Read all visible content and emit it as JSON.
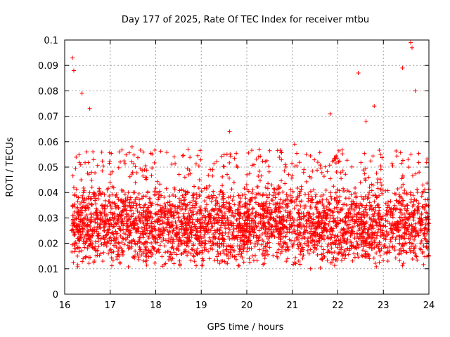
{
  "chart_data": {
    "type": "scatter",
    "title": "Day 177 of 2025, Rate Of TEC Index for receiver mtbu",
    "xlabel": "GPS time / hours",
    "ylabel": "ROTI / TECUs",
    "xlim": [
      16,
      24
    ],
    "ylim": [
      0,
      0.1
    ],
    "x_ticks": [
      "16",
      "17",
      "18",
      "19",
      "20",
      "21",
      "22",
      "23",
      "24"
    ],
    "y_ticks": [
      "0",
      "0.01",
      "0.02",
      "0.03",
      "0.04",
      "0.05",
      "0.06",
      "0.07",
      "0.08",
      "0.09",
      "0.1"
    ],
    "grid": true,
    "marker": "plus",
    "color": "#ff0000",
    "x_range_of_points": [
      16.15,
      24.0
    ],
    "typical_y_band": [
      0.01,
      0.045
    ],
    "series": [
      {
        "x": [
          16.15,
          16.18,
          16.2,
          16.22,
          16.25,
          16.28,
          16.3,
          16.33,
          16.36,
          16.4,
          16.45,
          16.5,
          16.55,
          16.6,
          16.65,
          16.7,
          16.8,
          16.9,
          17.0,
          17.1,
          17.2,
          17.25,
          17.3,
          17.4,
          17.45,
          17.5,
          17.6,
          17.7,
          17.8,
          17.9,
          18.0,
          18.1,
          18.2,
          18.3,
          18.4,
          18.5,
          18.6,
          18.7,
          18.75,
          18.8,
          18.9,
          19.0,
          19.1,
          19.2,
          19.3,
          19.4,
          19.5,
          19.6,
          19.65,
          19.7,
          19.8,
          19.9,
          20.0,
          20.1,
          20.2,
          20.25,
          20.3,
          20.4,
          20.5,
          20.55,
          20.6,
          20.7,
          20.8,
          20.9,
          21.0,
          21.05,
          21.1,
          21.2,
          21.3,
          21.4,
          21.5,
          21.6,
          21.7,
          21.8,
          21.85,
          21.9,
          22.0,
          22.1,
          22.2,
          22.3,
          22.4,
          22.45,
          22.5,
          22.6,
          22.7,
          22.75,
          22.8,
          22.85,
          22.9,
          23.0,
          23.1,
          23.2,
          23.3,
          23.35,
          23.4,
          23.45,
          23.5,
          23.55,
          23.6,
          23.65,
          23.7,
          23.8,
          23.9,
          23.95,
          24.0,
          16.17,
          16.2,
          16.38,
          16.55,
          17.22,
          17.48,
          18.72,
          19.62,
          20.27,
          21.05,
          21.83,
          22.45,
          22.62,
          22.8,
          23.42,
          23.6,
          23.63,
          23.7
        ],
        "y": [
          0.025,
          0.035,
          0.042,
          0.02,
          0.03,
          0.015,
          0.038,
          0.022,
          0.045,
          0.028,
          0.033,
          0.018,
          0.04,
          0.025,
          0.013,
          0.03,
          0.022,
          0.035,
          0.02,
          0.028,
          0.015,
          0.032,
          0.024,
          0.018,
          0.038,
          0.026,
          0.02,
          0.03,
          0.015,
          0.025,
          0.022,
          0.033,
          0.019,
          0.027,
          0.012,
          0.03,
          0.024,
          0.02,
          0.036,
          0.028,
          0.016,
          0.022,
          0.03,
          0.018,
          0.025,
          0.02,
          0.034,
          0.027,
          0.015,
          0.023,
          0.019,
          0.03,
          0.025,
          0.018,
          0.036,
          0.022,
          0.028,
          0.016,
          0.032,
          0.024,
          0.04,
          0.02,
          0.026,
          0.014,
          0.03,
          0.021,
          0.035,
          0.018,
          0.025,
          0.01,
          0.028,
          0.022,
          0.033,
          0.017,
          0.026,
          0.02,
          0.03,
          0.015,
          0.024,
          0.019,
          0.035,
          0.022,
          0.028,
          0.016,
          0.03,
          0.024,
          0.021,
          0.038,
          0.018,
          0.027,
          0.013,
          0.032,
          0.025,
          0.02,
          0.035,
          0.017,
          0.028,
          0.022,
          0.04,
          0.026,
          0.019,
          0.03,
          0.024,
          0.035,
          0.015,
          0.093,
          0.088,
          0.079,
          0.073,
          0.052,
          0.058,
          0.047,
          0.064,
          0.057,
          0.059,
          0.071,
          0.087,
          0.068,
          0.074,
          0.089,
          0.099,
          0.097,
          0.08
        ]
      }
    ]
  }
}
